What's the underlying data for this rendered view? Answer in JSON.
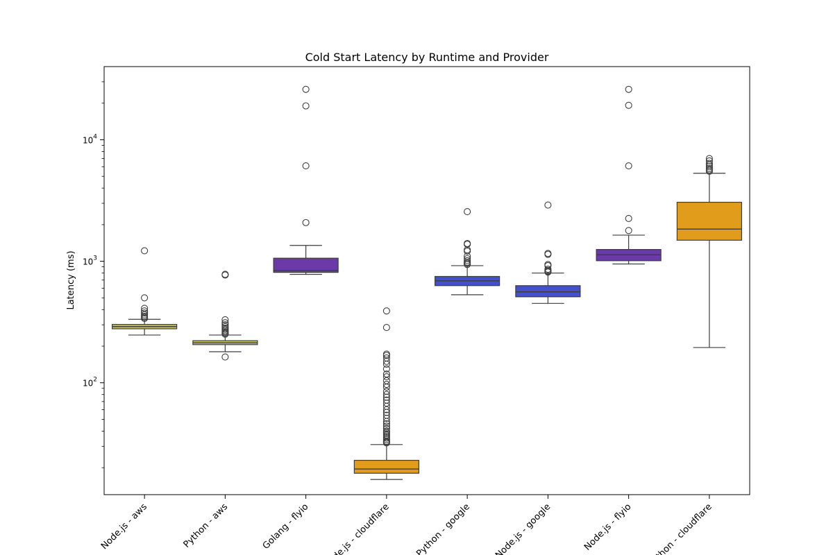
{
  "chart_data": {
    "type": "box",
    "title": "Cold Start Latency  by Runtime and Provider",
    "xlabel": "",
    "ylabel": "Latency (ms)",
    "yscale": "log",
    "ylim": [
      12,
      40000
    ],
    "y_ticks": [
      {
        "value": 100,
        "base": "10",
        "exp": "2"
      },
      {
        "value": 1000,
        "base": "10",
        "exp": "3"
      },
      {
        "value": 10000,
        "base": "10",
        "exp": "4"
      }
    ],
    "grid": false,
    "legend": "none",
    "categories": [
      "Node.js - aws",
      "Python - aws",
      "Golang - flyio",
      "Node.js - cloudflare",
      "Python - google",
      "Node.js - google",
      "Node.js - flyio",
      "Python - cloudflare"
    ],
    "boxes": [
      {
        "color": "#c6c454",
        "whisker_low": 247,
        "q1": 278,
        "median": 290,
        "q3": 302,
        "whisker_high": 333,
        "outliers": [
          1220,
          500,
          410,
          390,
          375,
          362,
          352,
          345,
          338
        ]
      },
      {
        "color": "#c6c454",
        "whisker_low": 180,
        "q1": 206,
        "median": 213,
        "q3": 222,
        "whisker_high": 247,
        "outliers": [
          163,
          780,
          770,
          330,
          312,
          300,
          290,
          282,
          275,
          268,
          262,
          256,
          251
        ]
      },
      {
        "color": "#6a3aa8",
        "whisker_low": 780,
        "q1": 810,
        "median": 840,
        "q3": 1060,
        "whisker_high": 1350,
        "outliers": [
          26000,
          19000,
          6100,
          2080
        ]
      },
      {
        "color": "#e29c1b",
        "whisker_low": 16,
        "q1": 18,
        "median": 19.5,
        "q3": 23,
        "whisker_high": 31,
        "outliers": [
          390,
          285,
          172,
          168,
          160,
          150,
          142,
          130,
          118,
          112,
          104,
          97,
          92,
          85,
          80,
          76,
          72,
          68,
          64,
          60,
          57,
          54,
          51,
          48,
          46,
          44,
          42,
          40,
          39,
          38,
          37,
          36,
          35,
          34,
          33,
          32.5,
          32
        ]
      },
      {
        "color": "#4450c8",
        "whisker_low": 530,
        "q1": 630,
        "median": 690,
        "q3": 750,
        "whisker_high": 920,
        "outliers": [
          2560,
          1400,
          1380,
          1240,
          1210,
          1100,
          1050,
          1010,
          980,
          960,
          940
        ]
      },
      {
        "color": "#4450c8",
        "whisker_low": 450,
        "q1": 510,
        "median": 560,
        "q3": 630,
        "whisker_high": 800,
        "outliers": [
          2900,
          1160,
          1140,
          940,
          920,
          860,
          840,
          825,
          815
        ]
      },
      {
        "color": "#6a3aa8",
        "whisker_low": 950,
        "q1": 1010,
        "median": 1130,
        "q3": 1250,
        "whisker_high": 1640,
        "outliers": [
          26000,
          19200,
          6100,
          2250,
          1790
        ]
      },
      {
        "color": "#e29c1b",
        "whisker_low": 195,
        "q1": 1490,
        "median": 1840,
        "q3": 3060,
        "whisker_high": 5300,
        "outliers": [
          7000,
          6700,
          6400,
          6200,
          6000,
          5800,
          5650,
          5500
        ]
      }
    ]
  }
}
